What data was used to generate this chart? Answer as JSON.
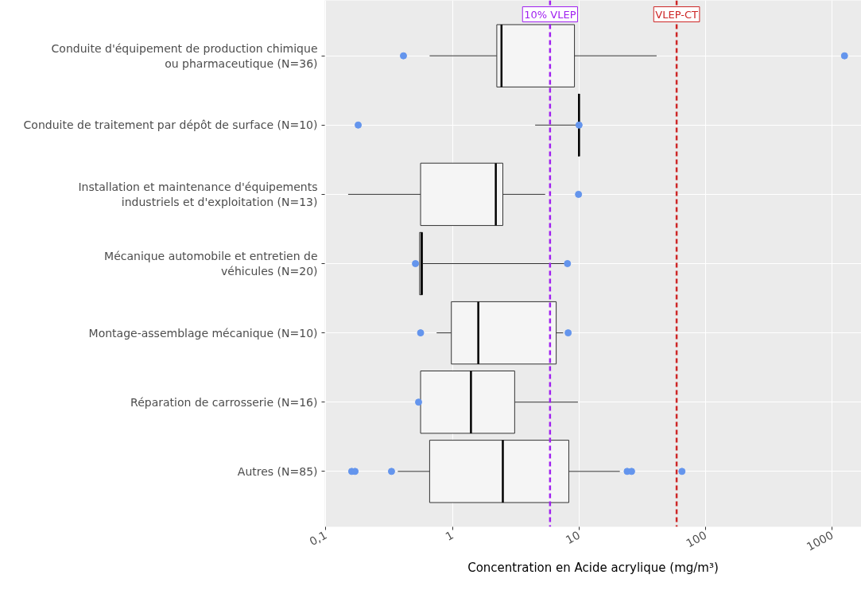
{
  "chart_data": {
    "type": "box",
    "orientation": "horizontal",
    "log": "x",
    "xlabel": "Concentration en Acide acrylique (mg/m³)",
    "categories": [
      "Conduite d'équipement de production chimique\nou pharmaceutique (N=36)",
      "Conduite de traitement par dépôt de surface (N=10)",
      "Installation et maintenance d'équipements\nindustriels et d'exploitation (N=13)",
      "Mécanique automobile et entretien de\nvéhicules (N=20)",
      "Montage-assemblage mécanique (N=10)",
      "Réparation de carrosserie (N=16)",
      "Autres (N=85)"
    ],
    "boxes": [
      {
        "low": 0.66,
        "q1": 2.24,
        "median": 2.44,
        "q3": 9.2,
        "high": 41,
        "outliers": [
          0.41,
          1250
        ]
      },
      {
        "low": 4.5,
        "q1": 9.9,
        "median": 10,
        "q3": 10,
        "high": 10,
        "outliers": [
          0.18,
          10
        ]
      },
      {
        "low": 0.15,
        "q1": 0.56,
        "median": 2.2,
        "q3": 2.5,
        "high": 5.4,
        "outliers": [
          9.9
        ]
      },
      {
        "low": 0.55,
        "q1": 0.55,
        "median": 0.57,
        "q3": 0.58,
        "high": 8.1,
        "outliers": [
          0.51,
          8.1
        ]
      },
      {
        "low": 0.75,
        "q1": 0.98,
        "median": 1.6,
        "q3": 6.6,
        "high": 7.5,
        "outliers": [
          0.56,
          8.2
        ]
      },
      {
        "low": 0.56,
        "q1": 0.56,
        "median": 1.4,
        "q3": 3.1,
        "high": 9.8,
        "outliers": [
          0.54
        ]
      },
      {
        "low": 0.37,
        "q1": 0.66,
        "median": 2.5,
        "q3": 8.3,
        "high": 21,
        "outliers": [
          0.16,
          0.17,
          0.33,
          24,
          26,
          65
        ]
      }
    ],
    "color": "#f5f5f5",
    "xlim": [
      0.098,
      1700
    ],
    "xticks": [
      {
        "value": 0.1,
        "label": "0,1"
      },
      1,
      10,
      100,
      1000
    ],
    "ref_lines": [
      {
        "axis": "x",
        "value": 5.9,
        "label": "10% VLEP",
        "color": "#a020f0",
        "line_style": "dashed"
      },
      {
        "axis": "x",
        "value": 59,
        "label": "VLEP-CT",
        "color": "#cd2626",
        "line_style": "dashed"
      }
    ],
    "grid": true
  }
}
